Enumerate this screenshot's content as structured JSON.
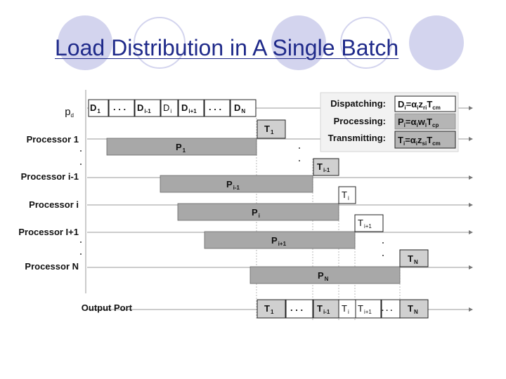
{
  "slide": {
    "title": "Load Distribution in A Single Batch"
  },
  "diagram": {
    "row_labels": {
      "pd": "p",
      "pd_sub": "d",
      "processor_1": "Processor 1",
      "processor_i_minus_1": "Processor i-1",
      "processor_i": "Processor i",
      "processor_i_plus_1": "Processor I+1",
      "processor_n": "Processor N",
      "output_port": "Output Port"
    },
    "dispatch_boxes": [
      {
        "main": "D",
        "sub": "1"
      },
      {
        "main": "D",
        "sub": "i-1"
      },
      {
        "main": "D",
        "sub": "i"
      },
      {
        "main": "D",
        "sub": "i+1"
      },
      {
        "main": "D",
        "sub": "N"
      }
    ],
    "process_bars": [
      {
        "main": "P",
        "sub": "1"
      },
      {
        "main": "P",
        "sub": "i-1"
      },
      {
        "main": "P",
        "sub": "i"
      },
      {
        "main": "P",
        "sub": "i+1"
      },
      {
        "main": "P",
        "sub": "N"
      }
    ],
    "transmit_boxes": [
      {
        "main": "T",
        "sub": "1"
      },
      {
        "main": "T",
        "sub": "i-1"
      },
      {
        "main": "T",
        "sub": "i"
      },
      {
        "main": "T",
        "sub": "i+1"
      },
      {
        "main": "T",
        "sub": "N"
      }
    ],
    "output_boxes": [
      {
        "main": "T",
        "sub": "1"
      },
      {
        "main": "T",
        "sub": "i-1"
      },
      {
        "main": "T",
        "sub": "i"
      },
      {
        "main": "T",
        "sub": "i+1"
      },
      {
        "main": "T",
        "sub": "N"
      }
    ],
    "ellipsis": ". . .",
    "legend": {
      "dispatching_label": "Dispatching:",
      "processing_label": "Processing:",
      "transmitting_label": "Transmitting:",
      "dispatching_formula": {
        "D": "D",
        "i1": "i",
        "eq": "=α",
        "i2": "i",
        "z": "z",
        "r": "r",
        "i3": "i",
        "T": "T",
        "cm": "cm"
      },
      "processing_formula": {
        "P": "P",
        "i1": "i",
        "eq": "=α",
        "i2": "i",
        "w": "w",
        "i3": "i",
        "T": "T",
        "cp": "cp"
      },
      "transmitting_formula": {
        "T": "T",
        "i1": "i",
        "eq": "=α",
        "i2": "i",
        "z": "z",
        "s": "s",
        "i3": "i",
        "T2": "T",
        "cm": "cm"
      }
    },
    "colors": {
      "title": "#1f2a8a",
      "circle": "#d3d4ee",
      "process_bar": "#a8a8a8",
      "legend_formula_box": "#b5b5b5",
      "legend_bg": "#f2f2f2",
      "box_border": "#222222"
    }
  }
}
